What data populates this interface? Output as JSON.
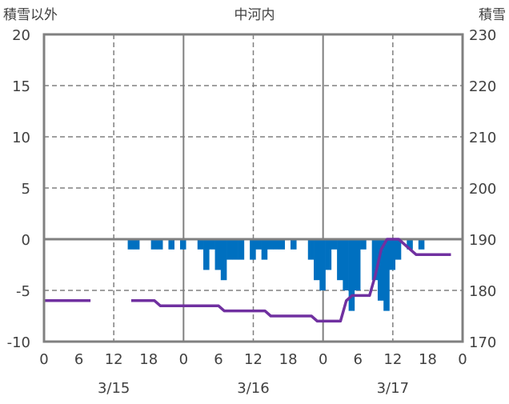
{
  "chart_data": {
    "type": "bar+line",
    "title": "中河内",
    "ylabel_left": "積雪以外",
    "ylabel_right": "積雪",
    "ylim_left": [
      -10,
      20
    ],
    "yticks_left": [
      -10,
      -5,
      0,
      5,
      10,
      15,
      20
    ],
    "ylim_right": [
      170,
      230
    ],
    "yticks_right": [
      170,
      180,
      190,
      200,
      210,
      220,
      230
    ],
    "xlim_hours": [
      0,
      72
    ],
    "xticks": [
      {
        "h": 0,
        "label": "0"
      },
      {
        "h": 6,
        "label": "6"
      },
      {
        "h": 12,
        "label": "12"
      },
      {
        "h": 18,
        "label": "18"
      },
      {
        "h": 24,
        "label": "0"
      },
      {
        "h": 30,
        "label": "6"
      },
      {
        "h": 36,
        "label": "12"
      },
      {
        "h": 42,
        "label": "18"
      },
      {
        "h": 48,
        "label": "0"
      },
      {
        "h": 54,
        "label": "6"
      },
      {
        "h": 60,
        "label": "12"
      },
      {
        "h": 66,
        "label": "18"
      },
      {
        "h": 72,
        "label": "0"
      }
    ],
    "dates": [
      {
        "h": 12,
        "label": "3/15"
      },
      {
        "h": 36,
        "label": "3/16"
      },
      {
        "h": 60,
        "label": "3/17"
      }
    ],
    "grid": true,
    "colors": {
      "bars": "#0070C0",
      "line": "#7030A0",
      "grid": "#808080"
    },
    "bars": [
      [
        14,
        -1
      ],
      [
        15,
        -1
      ],
      [
        18,
        -1
      ],
      [
        19,
        -1
      ],
      [
        21,
        -1
      ],
      [
        23,
        -1
      ],
      [
        26,
        -1
      ],
      [
        27,
        -3
      ],
      [
        28,
        -1
      ],
      [
        29,
        -3
      ],
      [
        30,
        -4
      ],
      [
        31,
        -2
      ],
      [
        32,
        -2
      ],
      [
        33,
        -2
      ],
      [
        35,
        -2
      ],
      [
        36,
        -1
      ],
      [
        37,
        -2
      ],
      [
        38,
        -1
      ],
      [
        39,
        -1
      ],
      [
        40,
        -1
      ],
      [
        42,
        -1
      ],
      [
        45,
        -2
      ],
      [
        46,
        -4
      ],
      [
        47,
        -5
      ],
      [
        48,
        -3
      ],
      [
        49,
        -1
      ],
      [
        50,
        -4
      ],
      [
        51,
        -5
      ],
      [
        52,
        -7
      ],
      [
        53,
        -5
      ],
      [
        54,
        -1
      ],
      [
        56,
        -4
      ],
      [
        57,
        -6
      ],
      [
        58,
        -7
      ],
      [
        59,
        -3
      ],
      [
        60,
        -2
      ],
      [
        62,
        -1
      ],
      [
        64,
        -1
      ]
    ],
    "snow_depth_segments": [
      [
        [
          0,
          178
        ],
        [
          8,
          178
        ]
      ],
      [
        [
          15,
          178
        ],
        [
          19,
          178
        ],
        [
          20,
          177
        ],
        [
          30,
          177
        ],
        [
          31,
          176
        ],
        [
          38,
          176
        ],
        [
          39,
          175
        ],
        [
          46,
          175
        ],
        [
          47,
          174
        ],
        [
          51,
          174
        ],
        [
          52,
          178
        ],
        [
          53,
          179
        ],
        [
          56,
          179
        ],
        [
          57,
          183
        ],
        [
          58,
          188
        ],
        [
          59,
          190
        ],
        [
          61,
          190
        ],
        [
          62,
          189
        ],
        [
          63,
          188
        ],
        [
          64,
          187
        ],
        [
          70,
          187
        ]
      ]
    ]
  }
}
